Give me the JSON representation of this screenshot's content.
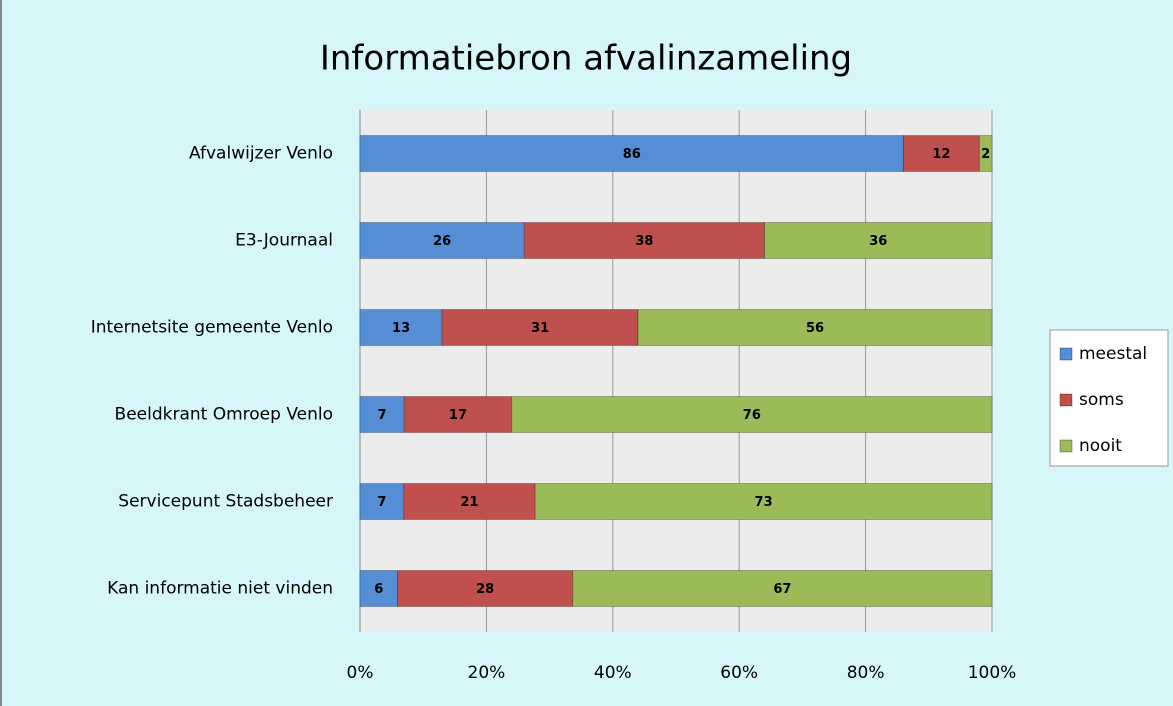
{
  "chart_data": {
    "type": "bar",
    "orientation": "horizontal",
    "stacked": "percent",
    "title": "Informatiebron afvalinzameling",
    "categories": [
      "Afvalwijzer Venlo",
      "E3-Journaal",
      "Internetsite gemeente Venlo",
      "Beeldkrant Omroep Venlo",
      "Servicepunt Stadsbeheer",
      "Kan informatie niet vinden"
    ],
    "series": [
      {
        "name": "meestal",
        "color": "#558ed5",
        "values": [
          86,
          26,
          13,
          7,
          7,
          6
        ]
      },
      {
        "name": "soms",
        "color": "#c0504d",
        "values": [
          12,
          38,
          31,
          17,
          21,
          28
        ]
      },
      {
        "name": "nooit",
        "color": "#9bbb59",
        "values": [
          2,
          36,
          56,
          76,
          73,
          67
        ]
      }
    ],
    "xlim": [
      0,
      100
    ],
    "xticks": [
      {
        "value": 0,
        "label": "0%"
      },
      {
        "value": 20,
        "label": "20%"
      },
      {
        "value": 40,
        "label": "40%"
      },
      {
        "value": 60,
        "label": "60%"
      },
      {
        "value": 80,
        "label": "80%"
      },
      {
        "value": 100,
        "label": "100%"
      }
    ],
    "grid": true,
    "legend": "right",
    "data_labels": true
  }
}
